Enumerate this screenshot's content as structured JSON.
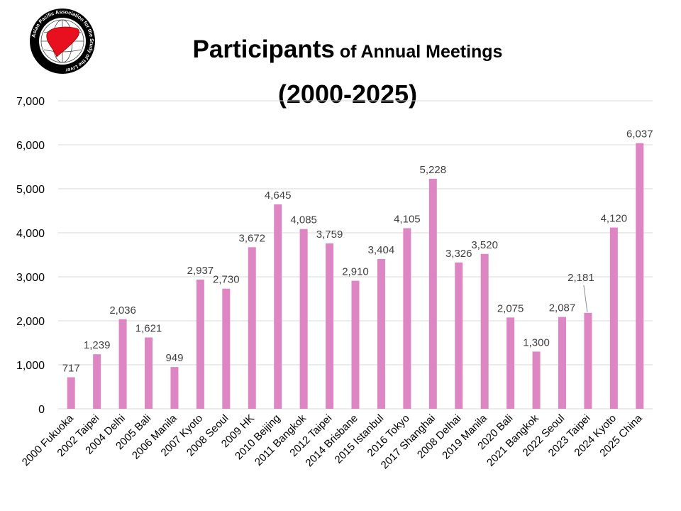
{
  "logo": {
    "text": "Asian Pacific Association for the Study of the Liver",
    "icon": "liver-globe-icon",
    "color_red": "#e8101e"
  },
  "chart_data": {
    "type": "bar",
    "title_main": "Participants",
    "title_rest": " of Annual Meetings",
    "subtitle": "(2000-2025)",
    "xlabel": "",
    "ylabel": "",
    "ylim": [
      0,
      7000
    ],
    "yticks": [
      "0",
      "1,000",
      "2,000",
      "3,000",
      "4,000",
      "5,000",
      "6,000",
      "7,000"
    ],
    "grid": true,
    "bar_color": "#de85c3",
    "categories": [
      "2000 Fukuoka",
      "2002 Taipei",
      "2004 Delhi",
      "2005 Bali",
      "2006 Manila",
      "2007 Kyoto",
      "2008 Seoul",
      "2009 HK",
      "2010 Beijing",
      "2011 Bangkok",
      "2012 Taipei",
      "2014 Brisbane",
      "2015 Istanbul",
      "2016 Tokyo",
      "2017 Shanghai",
      "2008 Delhai",
      "2019 Manila",
      "2020 Bali",
      "2021 Bangkok",
      "2022 Seoul",
      "2023 Taipei",
      "2024 Kyoto",
      "2025 China"
    ],
    "values": [
      717,
      1239,
      2036,
      1621,
      949,
      2937,
      2730,
      3672,
      4645,
      4085,
      3759,
      2910,
      3404,
      4105,
      5228,
      3326,
      3520,
      2075,
      1300,
      2087,
      2181,
      4120,
      6037
    ],
    "labels": [
      "717",
      "1,239",
      "2,036",
      "1,621",
      "949",
      "2,937",
      "2,730",
      "3,672",
      "4,645",
      "4,085",
      "3,759",
      "2,910",
      "3,404",
      "4,105",
      "5,228",
      "3,326",
      "3,520",
      "2,075",
      "1,300",
      "2,087",
      "2,181",
      "4,120",
      "6,037"
    ]
  }
}
